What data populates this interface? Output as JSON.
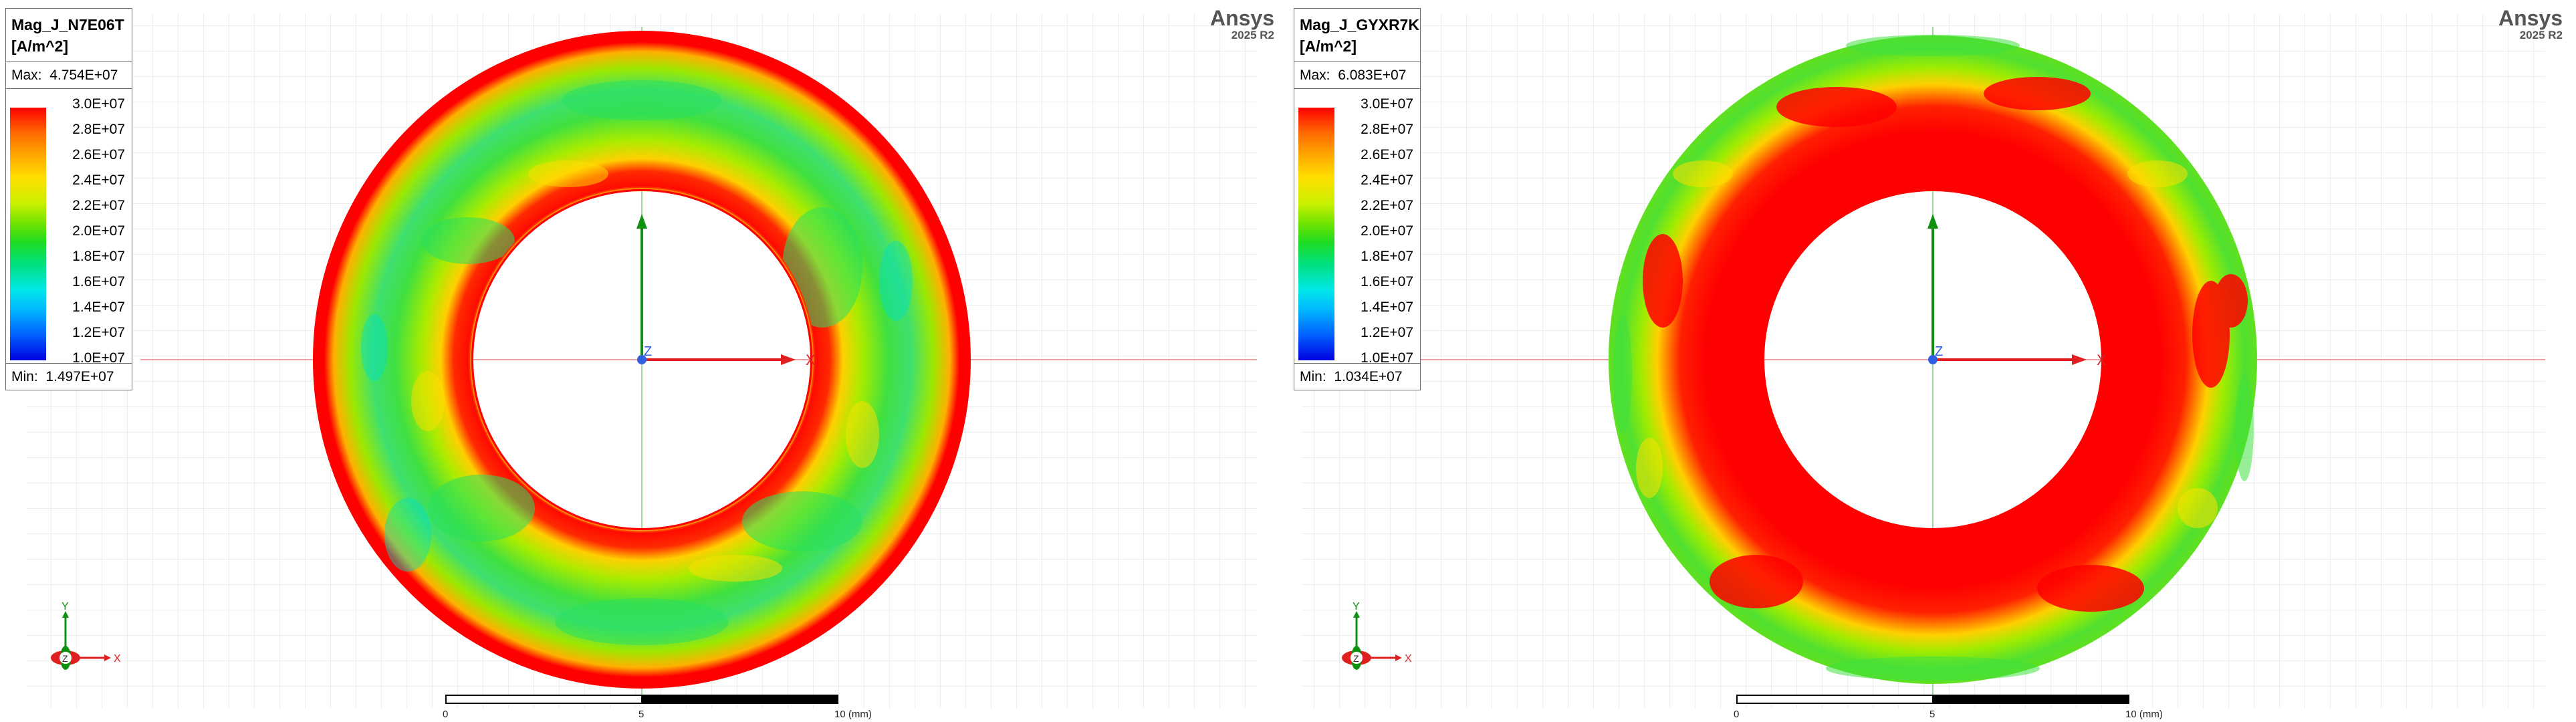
{
  "plots": [
    {
      "id": "left",
      "title": "Mag_J_N7E06T",
      "units": "[A/m^2]",
      "max_label": "Max:",
      "max_value": "4.754E+07",
      "min_label": "Min:",
      "min_value": "1.497E+07",
      "ticks": [
        "3.0E+07",
        "2.8E+07",
        "2.6E+07",
        "2.4E+07",
        "2.2E+07",
        "2.0E+07",
        "1.8E+07",
        "1.6E+07",
        "1.4E+07",
        "1.2E+07",
        "1.0E+07"
      ],
      "brand": "Ansys",
      "version": "2025 R2",
      "scale": [
        "0",
        "5",
        "10 (mm)"
      ],
      "axis_x": "X",
      "axis_y": "Y",
      "axis_z": "Z",
      "dominant_field": "green"
    },
    {
      "id": "right",
      "title": "Mag_J_GYXR7K",
      "units": "[A/m^2]",
      "max_label": "Max:",
      "max_value": "6.083E+07",
      "min_label": "Min:",
      "min_value": "1.034E+07",
      "ticks": [
        "3.0E+07",
        "2.8E+07",
        "2.6E+07",
        "2.4E+07",
        "2.2E+07",
        "2.0E+07",
        "1.8E+07",
        "1.6E+07",
        "1.4E+07",
        "1.2E+07",
        "1.0E+07"
      ],
      "brand": "Ansys",
      "version": "2025 R2",
      "scale": [
        "0",
        "5",
        "10 (mm)"
      ],
      "axis_x": "X",
      "axis_y": "Y",
      "axis_z": "Z",
      "dominant_field": "red"
    }
  ],
  "colors": {
    "high": "#ff0000",
    "mid": "#30e000",
    "low": "#0000e0",
    "x_axis": "#e02020",
    "y_axis": "#109010",
    "grid": "#d8d8d8"
  }
}
